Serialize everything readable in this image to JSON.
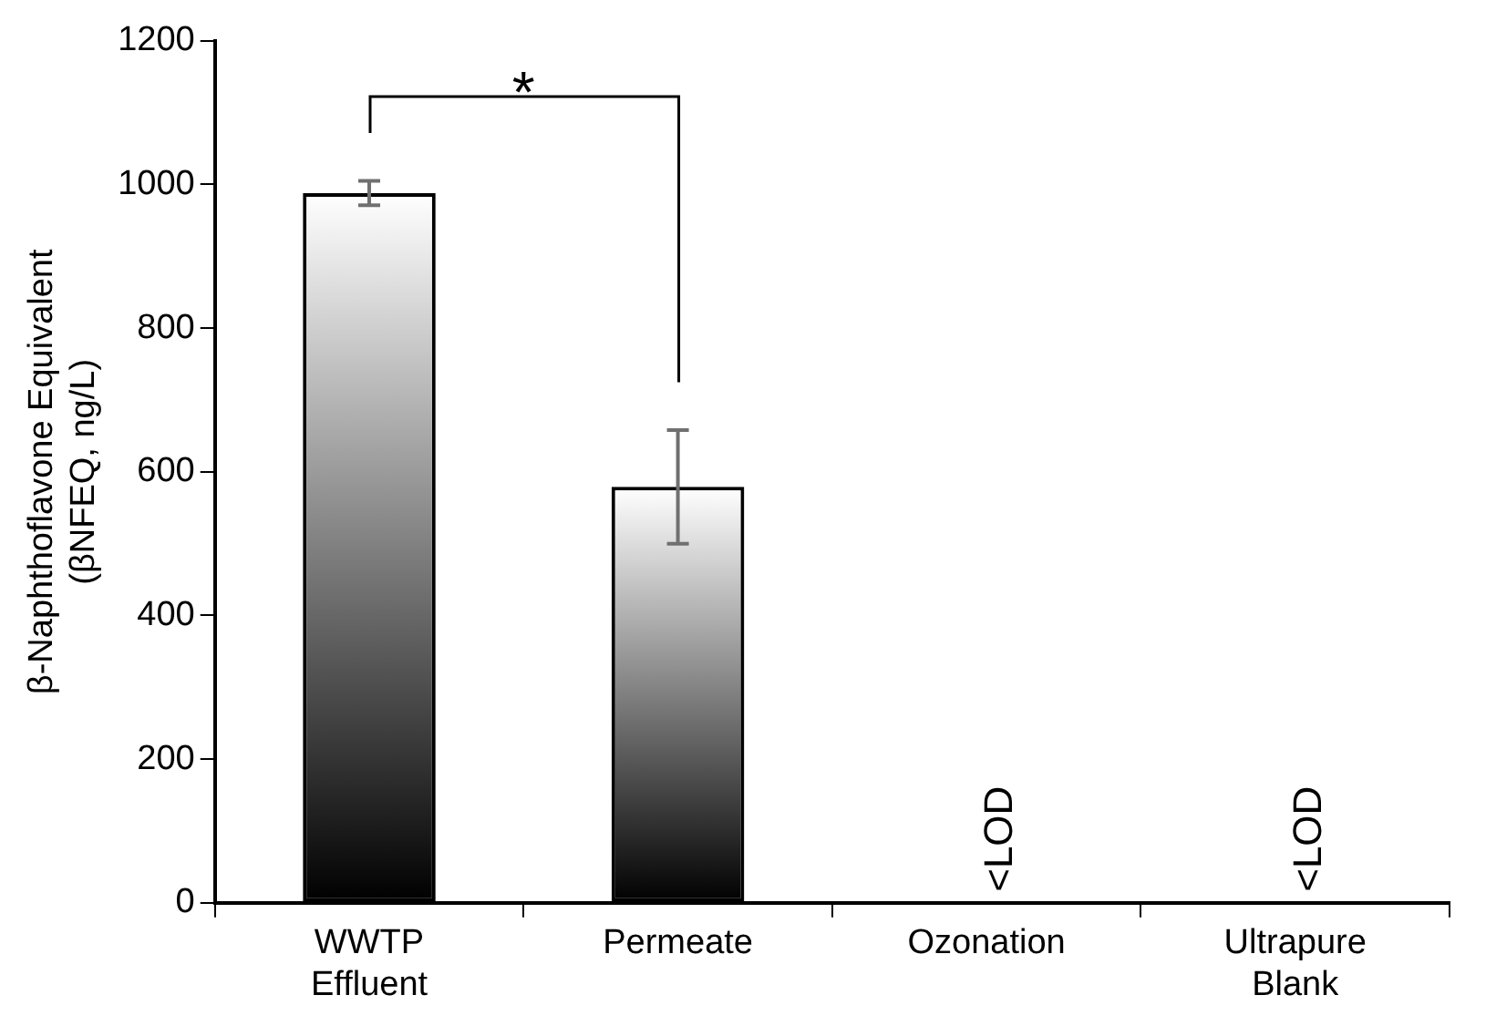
{
  "chart_data": {
    "type": "bar",
    "ylabel": "β-Naphthoflavone Equivalent\n(βNFEQ, ng/L)",
    "categories": [
      "WWTP Effluent",
      "Permeate",
      "Ozonation",
      "Ultrapure Blank"
    ],
    "values": [
      988,
      579,
      null,
      null
    ],
    "errors": [
      17,
      79,
      null,
      null
    ],
    "value_labels": [
      null,
      null,
      "<LOD",
      "<LOD"
    ],
    "color": "#000000",
    "ylim": [
      0,
      1200
    ],
    "yticks": [
      0,
      200,
      400,
      600,
      800,
      1000,
      1200
    ],
    "grid": false,
    "legend": false,
    "annotations": [
      "*"
    ]
  }
}
